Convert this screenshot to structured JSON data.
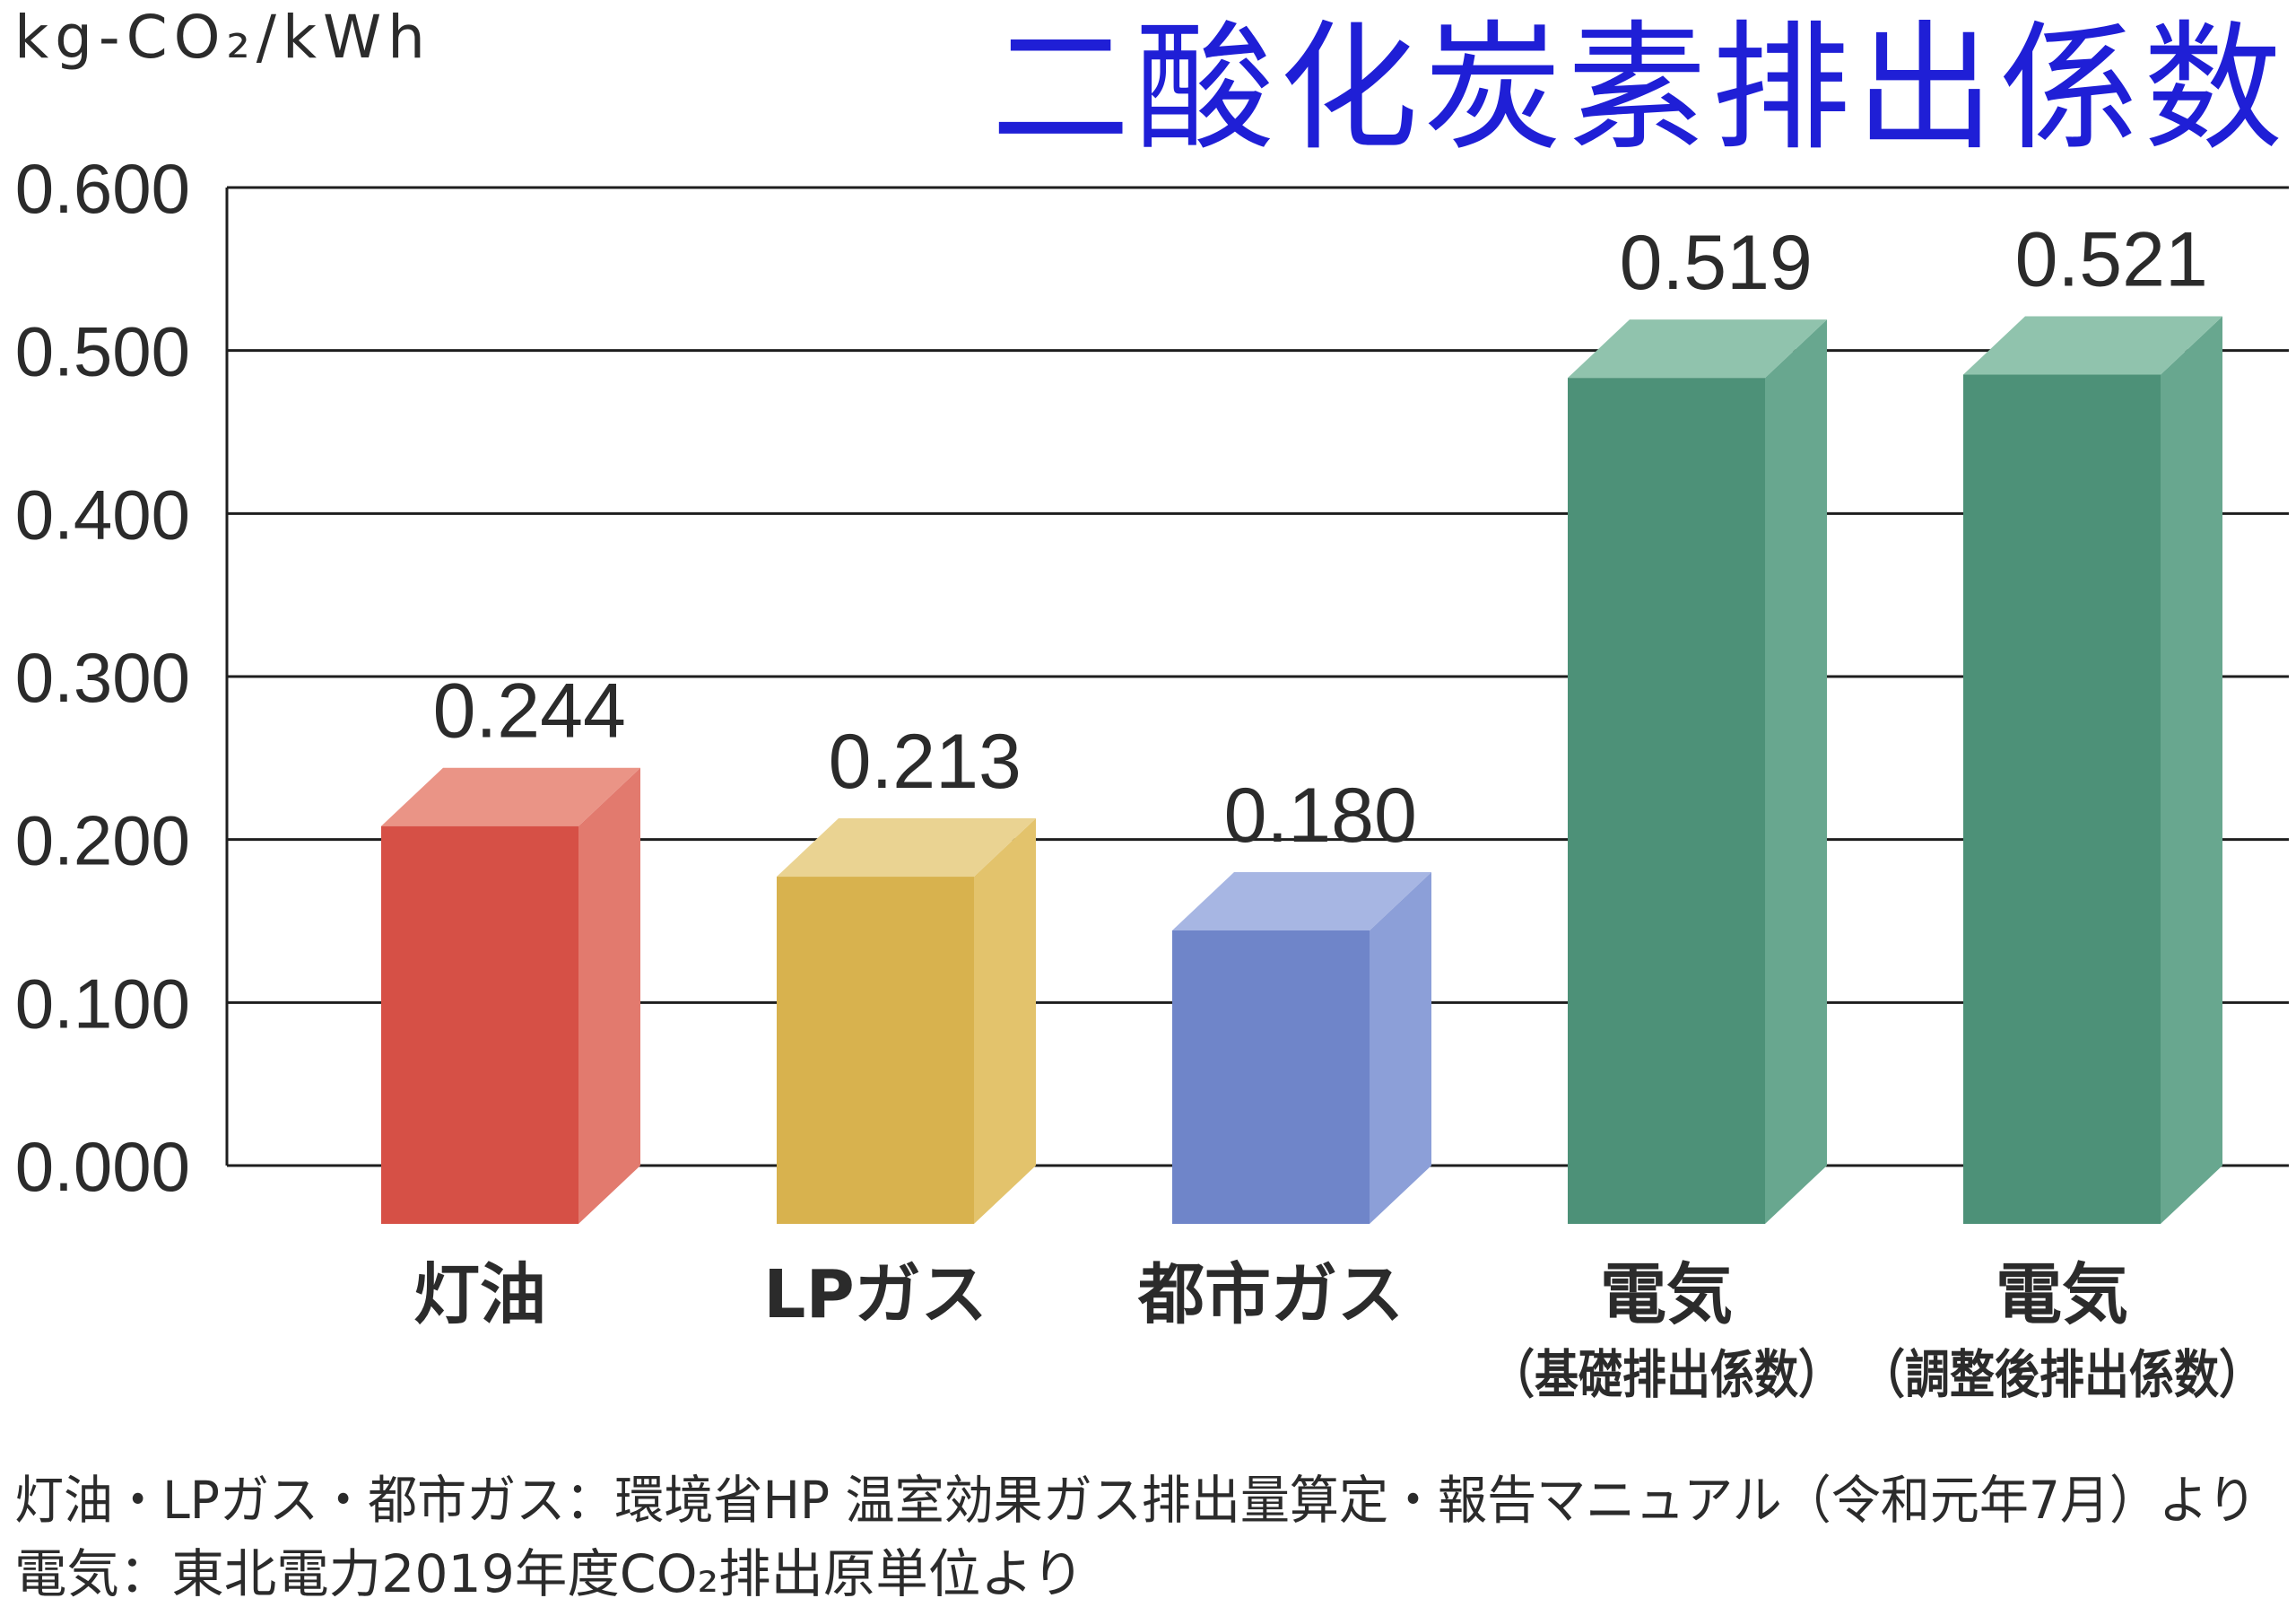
{
  "chart_data": {
    "type": "bar",
    "title": "二酸化炭素排出係数",
    "title_color": "#1f1fd6",
    "ylabel": "kg-CO₂/kWh",
    "ylim": [
      0,
      0.6
    ],
    "yticks": [
      0,
      0.1,
      0.2,
      0.3,
      0.4,
      0.5,
      0.6
    ],
    "ytick_labels": [
      "0.000",
      "0.100",
      "0.200",
      "0.300",
      "0.400",
      "0.500",
      "0.600"
    ],
    "grid": true,
    "categories": [
      "灯油",
      "LPガス",
      "都市ガス",
      "電気",
      "電気"
    ],
    "category_sublabels": [
      "",
      "",
      "",
      "（基礎排出係数）",
      "（調整後排出係数）"
    ],
    "values": [
      0.244,
      0.213,
      0.18,
      0.519,
      0.521
    ],
    "value_labels": [
      "0.244",
      "0.213",
      "0.180",
      "0.519",
      "0.521"
    ],
    "colors": [
      {
        "front": "#d65046",
        "side": "#e27a6e",
        "top": "#ea9486"
      },
      {
        "front": "#d8b24e",
        "side": "#e3c36c",
        "top": "#ead392"
      },
      {
        "front": "#6f85c9",
        "side": "#8c9fd8",
        "top": "#a7b6e3"
      },
      {
        "front": "#4d9178",
        "side": "#68a78f",
        "top": "#90c3ad"
      },
      {
        "front": "#4d9178",
        "side": "#68a78f",
        "top": "#90c3ad"
      }
    ]
  },
  "notes": [
    "灯油・LPガス・都市ガス：環境省HP 温室効果ガス排出量算定・報告マニュアル（令和元年7月）より",
    "電気：東北電力2019年度CO₂排出原単位より"
  ]
}
